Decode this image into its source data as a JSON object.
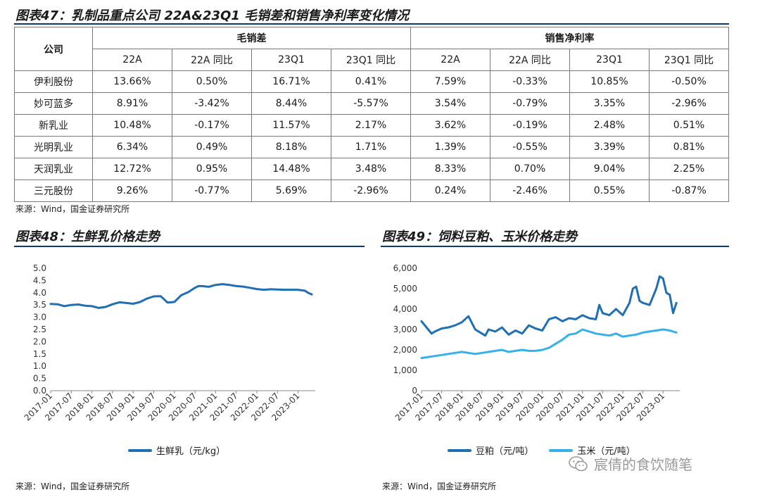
{
  "table_section": {
    "title": "图表47：乳制品重点公司 22A&23Q1 毛销差和销售净利率变化情况",
    "source": "来源：Wind，国金证券研究所",
    "company_header": "公司",
    "group1": "毛销差",
    "group2": "销售净利率",
    "subheaders": [
      "22A",
      "22A 同比",
      "23Q1",
      "23Q1 同比",
      "22A",
      "22A 同比",
      "23Q1",
      "23Q1 同比"
    ],
    "rows": [
      {
        "name": "伊利股份",
        "values": [
          "13.66%",
          "0.50%",
          "16.71%",
          "0.41%",
          "7.59%",
          "-0.33%",
          "10.85%",
          "-0.50%"
        ]
      },
      {
        "name": "妙可蓝多",
        "values": [
          "8.91%",
          "-3.42%",
          "8.44%",
          "-5.57%",
          "3.54%",
          "-0.79%",
          "3.35%",
          "-2.96%"
        ]
      },
      {
        "name": "新乳业",
        "values": [
          "10.48%",
          "-0.17%",
          "11.57%",
          "2.17%",
          "3.62%",
          "-0.19%",
          "2.48%",
          "0.51%"
        ]
      },
      {
        "name": "光明乳业",
        "values": [
          "6.34%",
          "0.49%",
          "8.18%",
          "1.71%",
          "1.39%",
          "-0.55%",
          "3.39%",
          "0.81%"
        ]
      },
      {
        "name": "天润乳业",
        "values": [
          "12.72%",
          "0.95%",
          "14.48%",
          "3.48%",
          "8.33%",
          "0.70%",
          "9.04%",
          "2.25%"
        ]
      },
      {
        "name": "三元股份",
        "values": [
          "9.26%",
          "-0.77%",
          "5.69%",
          "-2.96%",
          "0.24%",
          "-2.46%",
          "0.55%",
          "-0.87%"
        ]
      }
    ]
  },
  "chart48": {
    "title": "图表48：生鲜乳价格走势",
    "source": "来源：Wind，国金证券研究所"
  },
  "chart49": {
    "title": "图表49：饲料豆粕、玉米价格走势",
    "source": "来源：Wind，国金证券研究所"
  },
  "watermark": {
    "text": "宸倩的食饮随笔",
    "icon": "wechat-icon"
  },
  "colors": {
    "dark_blue": "#1f6fb4",
    "light_blue": "#33b1ea",
    "rule": "#0b3a73"
  },
  "chart_data": [
    {
      "type": "line",
      "title": "图表48：生鲜乳价格走势",
      "xlabel": "",
      "ylabel": "",
      "ylim": [
        0.0,
        5.0
      ],
      "yticks": [
        "0.0",
        "0.5",
        "1.0",
        "1.5",
        "2.0",
        "2.5",
        "3.0",
        "3.5",
        "4.0",
        "4.5",
        "5.0"
      ],
      "xticks": [
        "2017-01",
        "2017-07",
        "2018-01",
        "2018-07",
        "2019-01",
        "2019-07",
        "2020-01",
        "2020-07",
        "2021-01",
        "2021-07",
        "2022-01",
        "2022-07",
        "2023-01"
      ],
      "xrange": [
        0,
        77
      ],
      "legend": "bottom",
      "series": [
        {
          "name": "生鲜乳（元/kg）",
          "color": "#1f6fb4",
          "x": [
            0,
            2,
            4,
            6,
            8,
            10,
            12,
            14,
            16,
            18,
            20,
            22,
            24,
            26,
            28,
            30,
            32,
            34,
            36,
            38,
            40,
            42,
            43,
            44,
            46,
            48,
            50,
            52,
            54,
            56,
            58,
            60,
            62,
            64,
            66,
            68,
            70,
            72,
            74,
            75,
            76
          ],
          "y": [
            3.54,
            3.53,
            3.45,
            3.5,
            3.52,
            3.47,
            3.45,
            3.38,
            3.42,
            3.53,
            3.61,
            3.58,
            3.55,
            3.62,
            3.76,
            3.85,
            3.86,
            3.6,
            3.62,
            3.9,
            4.02,
            4.2,
            4.27,
            4.27,
            4.24,
            4.32,
            4.35,
            4.32,
            4.27,
            4.25,
            4.2,
            4.15,
            4.12,
            4.14,
            4.13,
            4.12,
            4.12,
            4.12,
            4.08,
            3.99,
            3.93
          ]
        }
      ]
    },
    {
      "type": "line",
      "title": "图表49：饲料豆粕、玉米价格走势",
      "xlabel": "",
      "ylabel": "",
      "ylim": [
        0,
        6000
      ],
      "yticks": [
        "0",
        "1,000",
        "2,000",
        "3,000",
        "4,000",
        "5,000",
        "6,000"
      ],
      "xticks": [
        "2017-01",
        "2017-07",
        "2018-01",
        "2018-07",
        "2019-01",
        "2019-07",
        "2020-01",
        "2020-07",
        "2021-01",
        "2021-07",
        "2022-01",
        "2022-07",
        "2023-01"
      ],
      "xrange": [
        0,
        77
      ],
      "legend": "bottom",
      "series": [
        {
          "name": "豆粕（元/吨）",
          "color": "#1f6fb4",
          "x": [
            0,
            2,
            3,
            4,
            6,
            8,
            10,
            12,
            14,
            16,
            18,
            19,
            20,
            22,
            24,
            26,
            28,
            30,
            32,
            34,
            36,
            38,
            40,
            42,
            44,
            46,
            48,
            50,
            52,
            53,
            54,
            56,
            58,
            60,
            62,
            63,
            64,
            65,
            66,
            68,
            70,
            71,
            72,
            73,
            74,
            75,
            76
          ],
          "y": [
            3400,
            3000,
            2800,
            2900,
            3050,
            3100,
            3200,
            3350,
            3650,
            3000,
            2800,
            2700,
            3000,
            2900,
            3100,
            2750,
            2950,
            2800,
            3200,
            3050,
            2950,
            3500,
            3600,
            3400,
            3550,
            3500,
            3700,
            3550,
            3500,
            4200,
            3800,
            3700,
            4000,
            3700,
            4300,
            5000,
            5100,
            4400,
            4300,
            4200,
            5000,
            5600,
            5500,
            4800,
            4700,
            3800,
            4300
          ]
        },
        {
          "name": "玉米（元/吨）",
          "color": "#33b1ea",
          "x": [
            0,
            2,
            4,
            6,
            8,
            10,
            12,
            14,
            16,
            18,
            20,
            22,
            24,
            26,
            28,
            30,
            32,
            34,
            36,
            38,
            40,
            42,
            44,
            46,
            48,
            50,
            52,
            54,
            56,
            58,
            60,
            62,
            64,
            66,
            68,
            70,
            72,
            74,
            76
          ],
          "y": [
            1600,
            1650,
            1700,
            1750,
            1800,
            1850,
            1900,
            1850,
            1800,
            1850,
            1900,
            1950,
            2000,
            1900,
            1950,
            2000,
            1950,
            1950,
            2000,
            2100,
            2300,
            2500,
            2750,
            2800,
            3000,
            2900,
            2800,
            2750,
            2700,
            2800,
            2650,
            2700,
            2750,
            2850,
            2900,
            2950,
            3000,
            2950,
            2850
          ]
        }
      ]
    }
  ]
}
